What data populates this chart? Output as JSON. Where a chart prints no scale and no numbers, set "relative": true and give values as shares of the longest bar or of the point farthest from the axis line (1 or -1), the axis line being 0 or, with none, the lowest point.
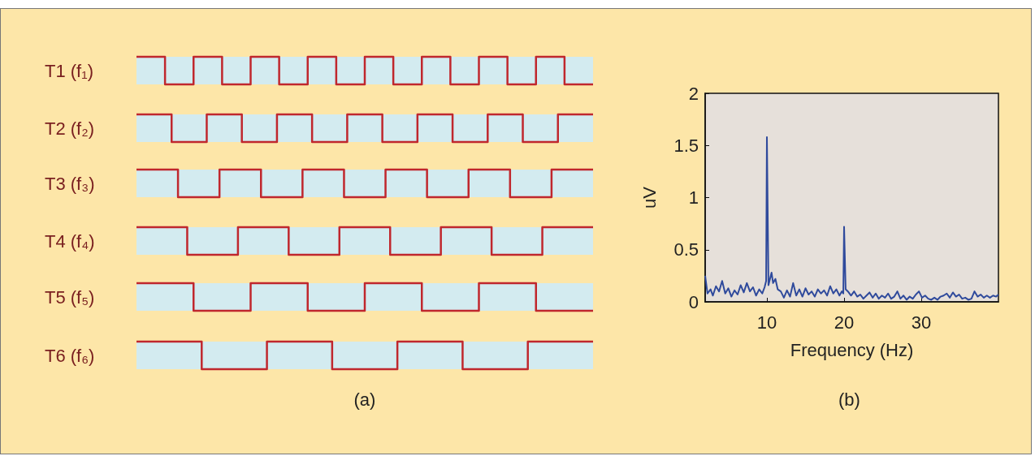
{
  "chart_data": [
    {
      "type": "step",
      "title": "T1 (f₁)",
      "relative": true,
      "categories": [
        null,
        null,
        null,
        null,
        null,
        null,
        null,
        null,
        null,
        null,
        null,
        null,
        null,
        null,
        null,
        null,
        null
      ],
      "series": [
        {
          "color": "#c0272d",
          "values": [
            1,
            0,
            1,
            0,
            1,
            0,
            1,
            0,
            1,
            0,
            1,
            0,
            1,
            0,
            1,
            0,
            0
          ]
        }
      ]
    },
    {
      "type": "step",
      "title": "T2 (f₂)",
      "relative": true,
      "categories": [
        null,
        null,
        null,
        null,
        null,
        null,
        null,
        null,
        null,
        null,
        null,
        null,
        null,
        null
      ],
      "series": [
        {
          "color": "#c0272d",
          "values": [
            1,
            0,
            1,
            0,
            1,
            0,
            1,
            0,
            1,
            0,
            1,
            0,
            1,
            1
          ]
        }
      ]
    },
    {
      "type": "step",
      "title": "T3 (f₃)",
      "relative": true,
      "categories": [
        null,
        null,
        null,
        null,
        null,
        null,
        null,
        null,
        null,
        null,
        null,
        null
      ],
      "series": [
        {
          "color": "#c0272d",
          "values": [
            1,
            0,
            1,
            0,
            1,
            0,
            1,
            0,
            1,
            0,
            1,
            1
          ]
        }
      ]
    },
    {
      "type": "step",
      "title": "T4 (f₄)",
      "relative": true,
      "categories": [
        null,
        null,
        null,
        null,
        null,
        null,
        null,
        null,
        null,
        null
      ],
      "series": [
        {
          "color": "#c0272d",
          "values": [
            1,
            0,
            1,
            0,
            1,
            0,
            1,
            0,
            1,
            1
          ]
        }
      ]
    },
    {
      "type": "step",
      "title": "T5 (f₅)",
      "relative": true,
      "categories": [
        null,
        null,
        null,
        null,
        null,
        null,
        null,
        null,
        null
      ],
      "series": [
        {
          "color": "#c0272d",
          "values": [
            1,
            0,
            1,
            0,
            1,
            0,
            1,
            0,
            0
          ]
        }
      ]
    },
    {
      "type": "step",
      "title": "T6 (f₆)",
      "relative": true,
      "categories": [
        null,
        null,
        null,
        null,
        null,
        null,
        null,
        null
      ],
      "annotations": [
        "(a)"
      ],
      "series": [
        {
          "color": "#c0272d",
          "values": [
            1,
            0,
            1,
            0,
            1,
            0,
            1,
            1
          ]
        }
      ]
    },
    {
      "type": "line",
      "xlabel": "Frequency (Hz)",
      "ylabel": "uV",
      "annotations": [
        "(b)"
      ],
      "xlim": [
        2,
        40
      ],
      "xticks": [
        10,
        20,
        30
      ],
      "ylim": [
        0,
        2
      ],
      "yticks": [
        0,
        0.5,
        1,
        1.5,
        2
      ],
      "marker": "none",
      "x": [
        2.0,
        2.3,
        2.7,
        3.0,
        3.4,
        3.8,
        4.2,
        4.6,
        5.0,
        5.4,
        5.8,
        6.2,
        6.6,
        7.0,
        7.4,
        7.8,
        8.2,
        8.6,
        9.0,
        9.4,
        9.7,
        9.9,
        10.0,
        10.2,
        10.4,
        10.6,
        10.8,
        11.1,
        11.4,
        11.8,
        12.2,
        12.6,
        13.0,
        13.4,
        13.8,
        14.2,
        14.6,
        15.0,
        15.4,
        15.8,
        16.2,
        16.6,
        17.0,
        17.4,
        17.8,
        18.2,
        18.6,
        19.0,
        19.4,
        19.7,
        19.9,
        20.0,
        20.2,
        20.5,
        20.9,
        21.3,
        21.7,
        22.1,
        22.5,
        22.9,
        23.3,
        23.7,
        24.1,
        24.5,
        24.9,
        25.3,
        25.7,
        26.1,
        26.5,
        26.9,
        27.3,
        27.7,
        28.1,
        28.5,
        28.9,
        29.3,
        29.7,
        30.1,
        30.5,
        30.9,
        31.3,
        31.7,
        32.1,
        32.5,
        32.9,
        33.3,
        33.7,
        34.1,
        34.5,
        34.9,
        35.3,
        35.7,
        36.1,
        36.5,
        36.9,
        37.3,
        37.7,
        38.1,
        38.5,
        38.9,
        39.3,
        39.7,
        40.0
      ],
      "series": [
        {
          "color": "#2f4a9c",
          "values": [
            0.25,
            0.08,
            0.12,
            0.06,
            0.15,
            0.1,
            0.2,
            0.08,
            0.13,
            0.05,
            0.11,
            0.07,
            0.16,
            0.09,
            0.18,
            0.1,
            0.14,
            0.06,
            0.12,
            0.08,
            0.14,
            0.2,
            1.58,
            0.16,
            0.22,
            0.28,
            0.18,
            0.22,
            0.12,
            0.1,
            0.04,
            0.11,
            0.05,
            0.18,
            0.06,
            0.12,
            0.05,
            0.13,
            0.07,
            0.1,
            0.05,
            0.12,
            0.08,
            0.11,
            0.06,
            0.15,
            0.08,
            0.12,
            0.06,
            0.1,
            0.08,
            0.72,
            0.12,
            0.1,
            0.06,
            0.1,
            0.05,
            0.07,
            0.03,
            0.06,
            0.09,
            0.04,
            0.08,
            0.03,
            0.06,
            0.04,
            0.08,
            0.03,
            0.05,
            0.1,
            0.03,
            0.06,
            0.02,
            0.05,
            0.03,
            0.07,
            0.1,
            0.04,
            0.06,
            0.03,
            0.02,
            0.04,
            0.02,
            0.05,
            0.06,
            0.08,
            0.04,
            0.09,
            0.05,
            0.07,
            0.03,
            0.04,
            0.02,
            0.03,
            0.1,
            0.05,
            0.07,
            0.04,
            0.06,
            0.04,
            0.06,
            0.05,
            0.07
          ]
        }
      ]
    }
  ]
}
